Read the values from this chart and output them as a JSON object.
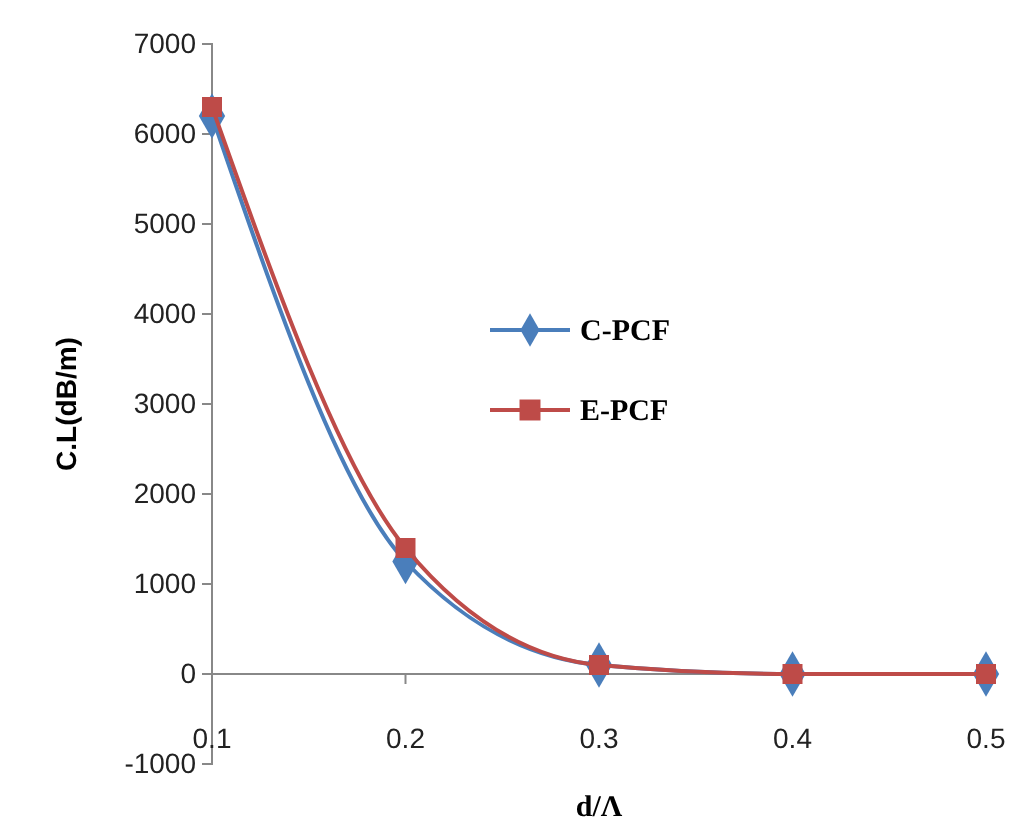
{
  "chart_data": {
    "type": "line",
    "xlabel": "d/Λ",
    "ylabel": "C.L(dB/m)",
    "x": [
      0.1,
      0.2,
      0.3,
      0.4,
      0.5
    ],
    "series": [
      {
        "name": "C-PCF",
        "color": "#4a7ebb",
        "marker": "diamond",
        "values": [
          6200,
          1250,
          100,
          0,
          0
        ]
      },
      {
        "name": "E-PCF",
        "color": "#be4b48",
        "marker": "square",
        "values": [
          6300,
          1400,
          100,
          0,
          0
        ]
      }
    ],
    "xlim": [
      0.1,
      0.5
    ],
    "xticks": [
      0.1,
      0.2,
      0.3,
      0.4,
      0.5
    ],
    "ylim": [
      -1000,
      7000
    ],
    "yticks": [
      -1000,
      0,
      1000,
      2000,
      3000,
      4000,
      5000,
      6000,
      7000
    ],
    "grid": false,
    "legend": "top right",
    "line_style": "solid"
  }
}
